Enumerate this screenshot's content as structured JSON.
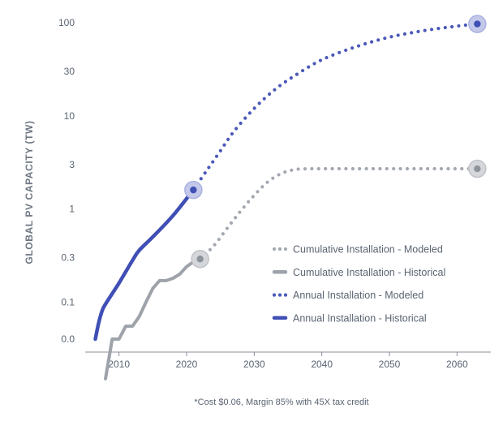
{
  "chart_data": {
    "type": "line",
    "ylabel": "GLOBAL PV CAPACITY (TW)",
    "yscale": "log",
    "y_ticks": [
      {
        "value": 0.04,
        "label": "0.0"
      },
      {
        "value": 0.1,
        "label": "0.1"
      },
      {
        "value": 0.3,
        "label": "0.3"
      },
      {
        "value": 1,
        "label": "1"
      },
      {
        "value": 3,
        "label": "3"
      },
      {
        "value": 10,
        "label": "10"
      },
      {
        "value": 30,
        "label": "30"
      },
      {
        "value": 100,
        "label": "100"
      }
    ],
    "x_ticks": [
      {
        "value": 2010,
        "label": "2010"
      },
      {
        "value": 2020,
        "label": "2020"
      },
      {
        "value": 2030,
        "label": "2030"
      },
      {
        "value": 2040,
        "label": "2040"
      },
      {
        "value": 2050,
        "label": "2050"
      },
      {
        "value": 2060,
        "label": "2060"
      }
    ],
    "xlim": [
      2005,
      2065
    ],
    "grid": false,
    "legend_position": "right-middle",
    "footnote": "*Cost $0.06, Margin 85% with 45X tax credit",
    "series": [
      {
        "name": "Cumulative Installation - Modeled",
        "color": "#a3a8b0",
        "style": "dotted",
        "points": [
          [
            2022,
            0.29
          ],
          [
            2024,
            0.4
          ],
          [
            2026,
            0.62
          ],
          [
            2028,
            0.95
          ],
          [
            2030,
            1.4
          ],
          [
            2032,
            1.95
          ],
          [
            2034,
            2.4
          ],
          [
            2036,
            2.65
          ],
          [
            2038,
            2.7
          ],
          [
            2040,
            2.7
          ],
          [
            2045,
            2.7
          ],
          [
            2050,
            2.7
          ],
          [
            2055,
            2.7
          ],
          [
            2060,
            2.7
          ],
          [
            2063,
            2.7
          ]
        ],
        "highlight": [
          2063,
          2.7
        ]
      },
      {
        "name": "Cumulative Installation - Historical",
        "color": "#9ea3aa",
        "style": "solid",
        "points": [
          [
            2008,
            0.015
          ],
          [
            2009,
            0.04
          ],
          [
            2010,
            0.04
          ],
          [
            2011,
            0.055
          ],
          [
            2012,
            0.055
          ],
          [
            2013,
            0.07
          ],
          [
            2014,
            0.1
          ],
          [
            2015,
            0.14
          ],
          [
            2016,
            0.17
          ],
          [
            2017,
            0.17
          ],
          [
            2018,
            0.18
          ],
          [
            2019,
            0.2
          ],
          [
            2020,
            0.24
          ],
          [
            2021,
            0.27
          ],
          [
            2022,
            0.29
          ]
        ],
        "highlight": [
          2022,
          0.29
        ]
      },
      {
        "name": "Annual Installation - Modeled",
        "color": "#4a58b8",
        "style": "dotted",
        "points": [
          [
            2021,
            1.6
          ],
          [
            2023,
            2.6
          ],
          [
            2025,
            4.2
          ],
          [
            2027,
            6.8
          ],
          [
            2030,
            12
          ],
          [
            2033,
            19
          ],
          [
            2036,
            27
          ],
          [
            2040,
            40
          ],
          [
            2045,
            55
          ],
          [
            2050,
            70
          ],
          [
            2055,
            82
          ],
          [
            2060,
            92
          ],
          [
            2063,
            97
          ]
        ],
        "highlight": [
          2063,
          97
        ]
      },
      {
        "name": "Annual Installation - Historical",
        "color": "#3f4fb5",
        "style": "solid",
        "points": [
          [
            2006.5,
            0.04
          ],
          [
            2007,
            0.06
          ],
          [
            2007.5,
            0.08
          ],
          [
            2008,
            0.095
          ],
          [
            2010,
            0.16
          ],
          [
            2012,
            0.28
          ],
          [
            2013,
            0.36
          ],
          [
            2015,
            0.5
          ],
          [
            2018,
            0.85
          ],
          [
            2021,
            1.6
          ]
        ],
        "highlight": [
          2021,
          1.6
        ]
      }
    ]
  }
}
